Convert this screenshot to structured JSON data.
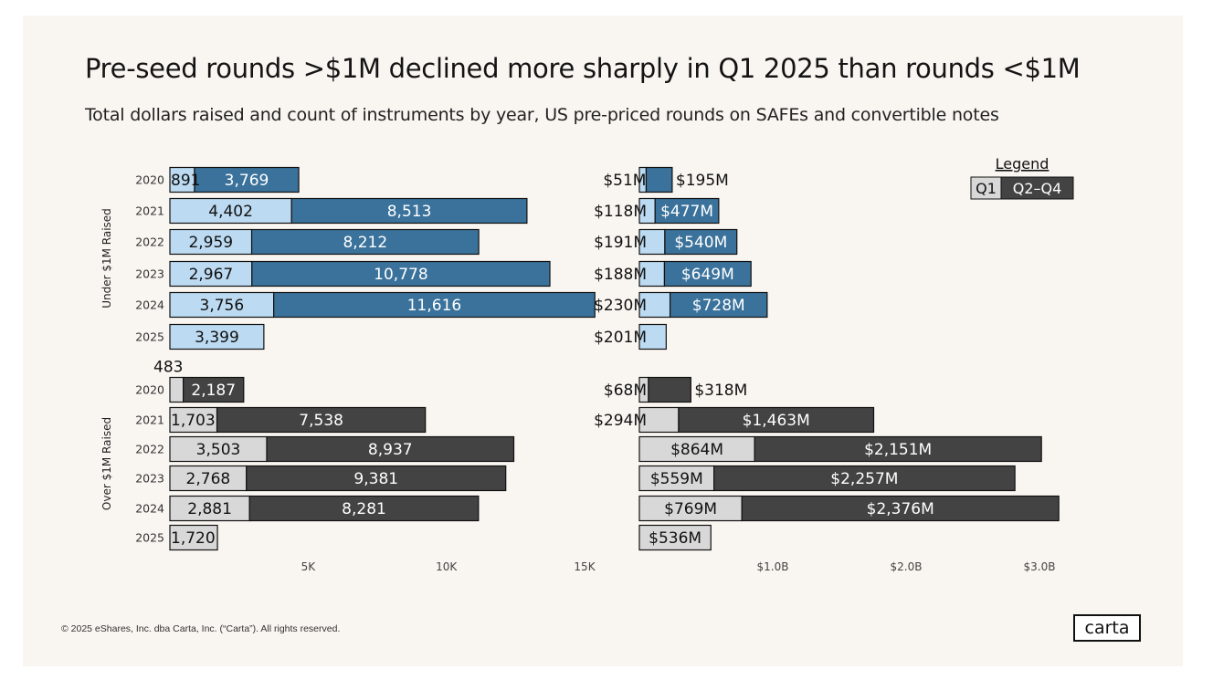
{
  "title": "Pre-seed rounds  >$1M declined more sharply in Q1 2025 than rounds  <$1M",
  "subtitle": "Total dollars raised and count of instruments by year, US pre-priced rounds on SAFEs and convertible notes",
  "footer": "© 2025 eShares, Inc. dba Carta, Inc. (“Carta”). All rights reserved.",
  "logo": "carta",
  "colors": {
    "under_q1": "#bcdaf1",
    "under_q2q4": "#3a729b",
    "over_q1": "#d8d8d8",
    "over_q2q4": "#434343",
    "background": "#f9f6f1"
  },
  "chart_data": {
    "type": "bar",
    "orientation": "horizontal",
    "stacked": true,
    "legend": {
      "title": "Legend",
      "placement": "top-right",
      "items": [
        "Q1",
        "Q2–Q4"
      ]
    },
    "panels": [
      {
        "name": "count",
        "xlim": [
          0,
          15000
        ],
        "xticks": [
          5000,
          10000,
          15000
        ],
        "xtick_labels": [
          "5K",
          "10K",
          "15K"
        ],
        "groups": [
          {
            "label": "Under $1M Raised",
            "years": [
              "2020",
              "2021",
              "2022",
              "2023",
              "2024",
              "2025"
            ],
            "q1": [
              891,
              4402,
              2959,
              2967,
              3756,
              3399
            ],
            "q2q4": [
              3769,
              8513,
              8212,
              10778,
              11616,
              null
            ],
            "q1_labels": [
              "891",
              "4,402",
              "2,959",
              "2,967",
              "3,756",
              "3,399"
            ],
            "q2q4_labels": [
              "3,769",
              "8,513",
              "8,212",
              "10,778",
              "11,616",
              ""
            ]
          },
          {
            "label": "Over $1M Raised",
            "years": [
              "2020",
              "2021",
              "2022",
              "2023",
              "2024",
              "2025"
            ],
            "q1": [
              483,
              1703,
              3503,
              2768,
              2881,
              1720
            ],
            "q2q4": [
              2187,
              7538,
              8937,
              9381,
              8281,
              null
            ],
            "q1_labels": [
              "483",
              "1,703",
              "3,503",
              "2,768",
              "2,881",
              "1,720"
            ],
            "q2q4_labels": [
              "2,187",
              "7,538",
              "8,937",
              "9,381",
              "8,281",
              ""
            ]
          }
        ]
      },
      {
        "name": "dollars",
        "unit": "$M",
        "xlim": [
          0,
          3000
        ],
        "xticks": [
          1000,
          2000,
          3000
        ],
        "xtick_labels": [
          "$1.0B",
          "$2.0B",
          "$3.0B"
        ],
        "groups": [
          {
            "label": "Under $1M Raised",
            "years": [
              "2020",
              "2021",
              "2022",
              "2023",
              "2024",
              "2025"
            ],
            "q1": [
              51,
              118,
              191,
              188,
              230,
              201
            ],
            "q2q4": [
              195,
              477,
              540,
              649,
              728,
              null
            ],
            "q1_labels": [
              "$51M",
              "$118M",
              "$191M",
              "$188M",
              "$230M",
              "$201M"
            ],
            "q2q4_labels": [
              "$195M",
              "$477M",
              "$540M",
              "$649M",
              "$728M",
              ""
            ]
          },
          {
            "label": "Over $1M Raised",
            "years": [
              "2020",
              "2021",
              "2022",
              "2023",
              "2024",
              "2025"
            ],
            "q1": [
              68,
              294,
              864,
              559,
              769,
              536
            ],
            "q2q4": [
              318,
              1463,
              2151,
              2257,
              2376,
              null
            ],
            "q1_labels": [
              "$68M",
              "$294M",
              "$864M",
              "$559M",
              "$769M",
              "$536M"
            ],
            "q2q4_labels": [
              "$318M",
              "$1,463M",
              "$2,151M",
              "$2,257M",
              "$2,376M",
              ""
            ]
          }
        ]
      }
    ]
  }
}
